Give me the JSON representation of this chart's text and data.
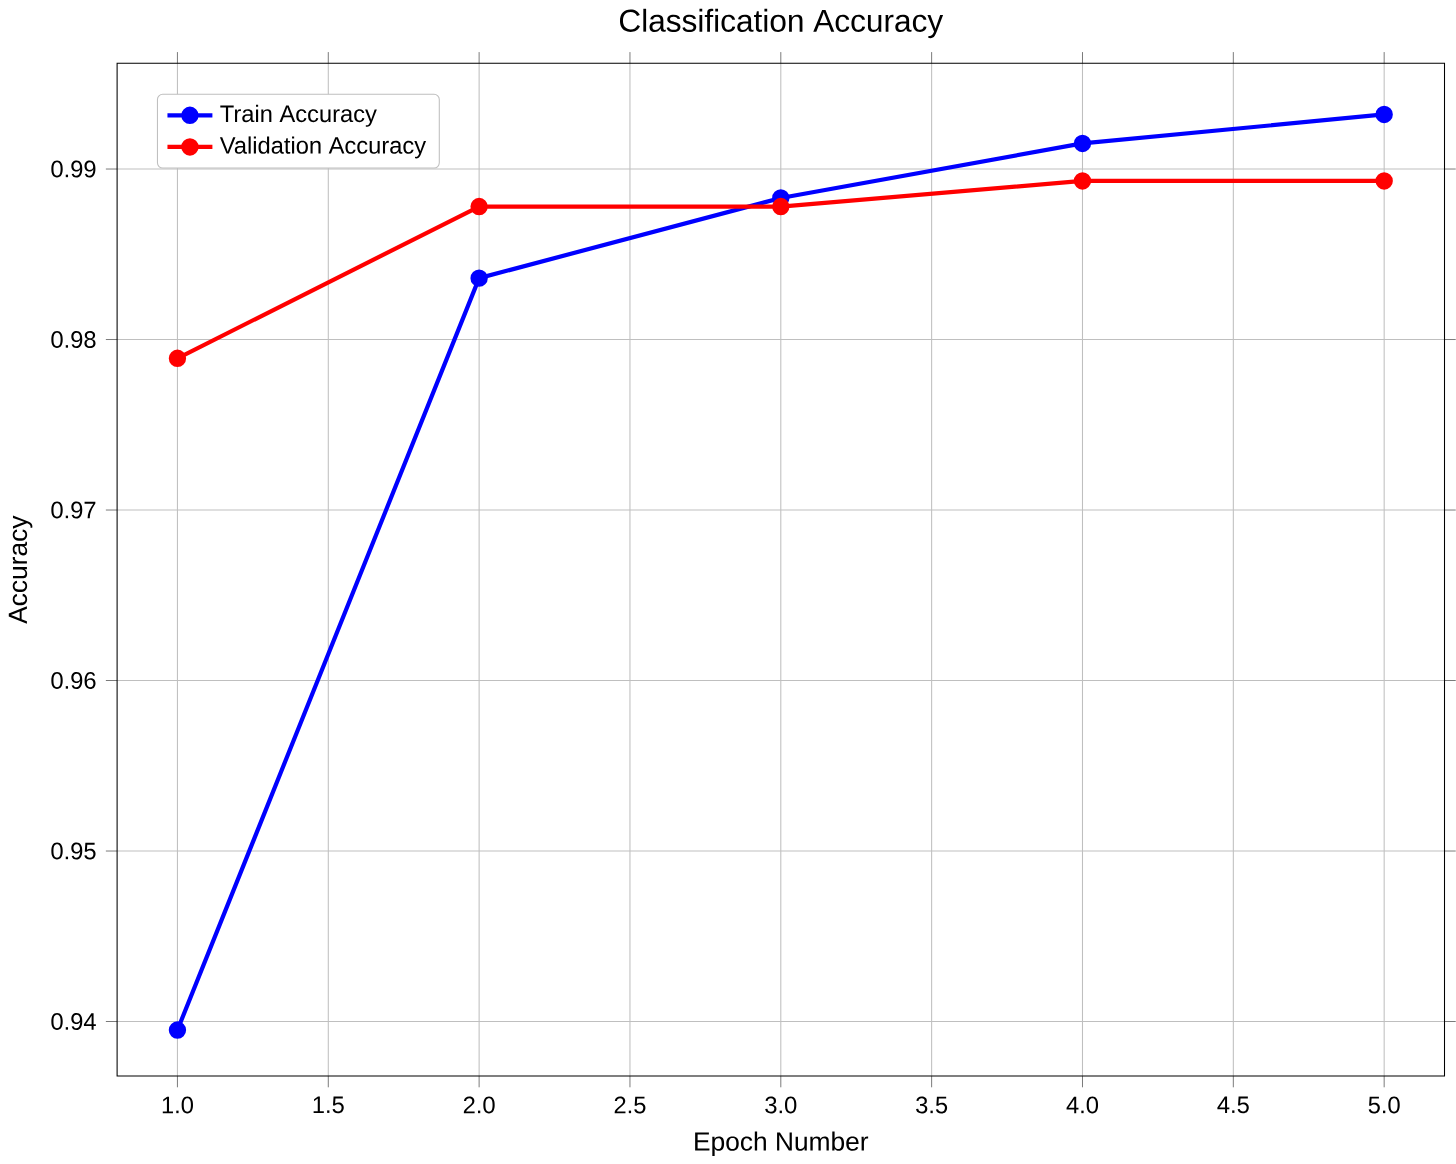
{
  "chart_data": {
    "type": "line",
    "title": "Classification Accuracy",
    "xlabel": "Epoch Number",
    "ylabel": "Accuracy",
    "x": [
      1,
      2,
      3,
      4,
      5
    ],
    "series": [
      {
        "name": "Train Accuracy",
        "color": "#0000ff",
        "values": [
          0.9395,
          0.9836,
          0.9883,
          0.9915,
          0.9932
        ]
      },
      {
        "name": "Validation Accuracy",
        "color": "#ff0000",
        "values": [
          0.9789,
          0.9878,
          0.9878,
          0.9893,
          0.9893
        ]
      }
    ],
    "xlim": [
      0.8,
      5.2
    ],
    "ylim": [
      0.9368,
      0.9962
    ],
    "xticks": [
      {
        "value": 1,
        "label": "1.0"
      },
      {
        "value": 1.5,
        "label": "1.5"
      },
      {
        "value": 2,
        "label": "2.0"
      },
      {
        "value": 2.5,
        "label": "2.5"
      },
      {
        "value": 3,
        "label": "3.0"
      },
      {
        "value": 3.5,
        "label": "3.5"
      },
      {
        "value": 4,
        "label": "4.0"
      },
      {
        "value": 4.5,
        "label": "4.5"
      },
      {
        "value": 5,
        "label": "5.0"
      }
    ],
    "yticks": [
      0.94,
      0.95,
      0.96,
      0.97,
      0.98,
      0.99
    ],
    "grid": true,
    "legend": "top left",
    "marker": "circle",
    "line_style": "solid"
  }
}
